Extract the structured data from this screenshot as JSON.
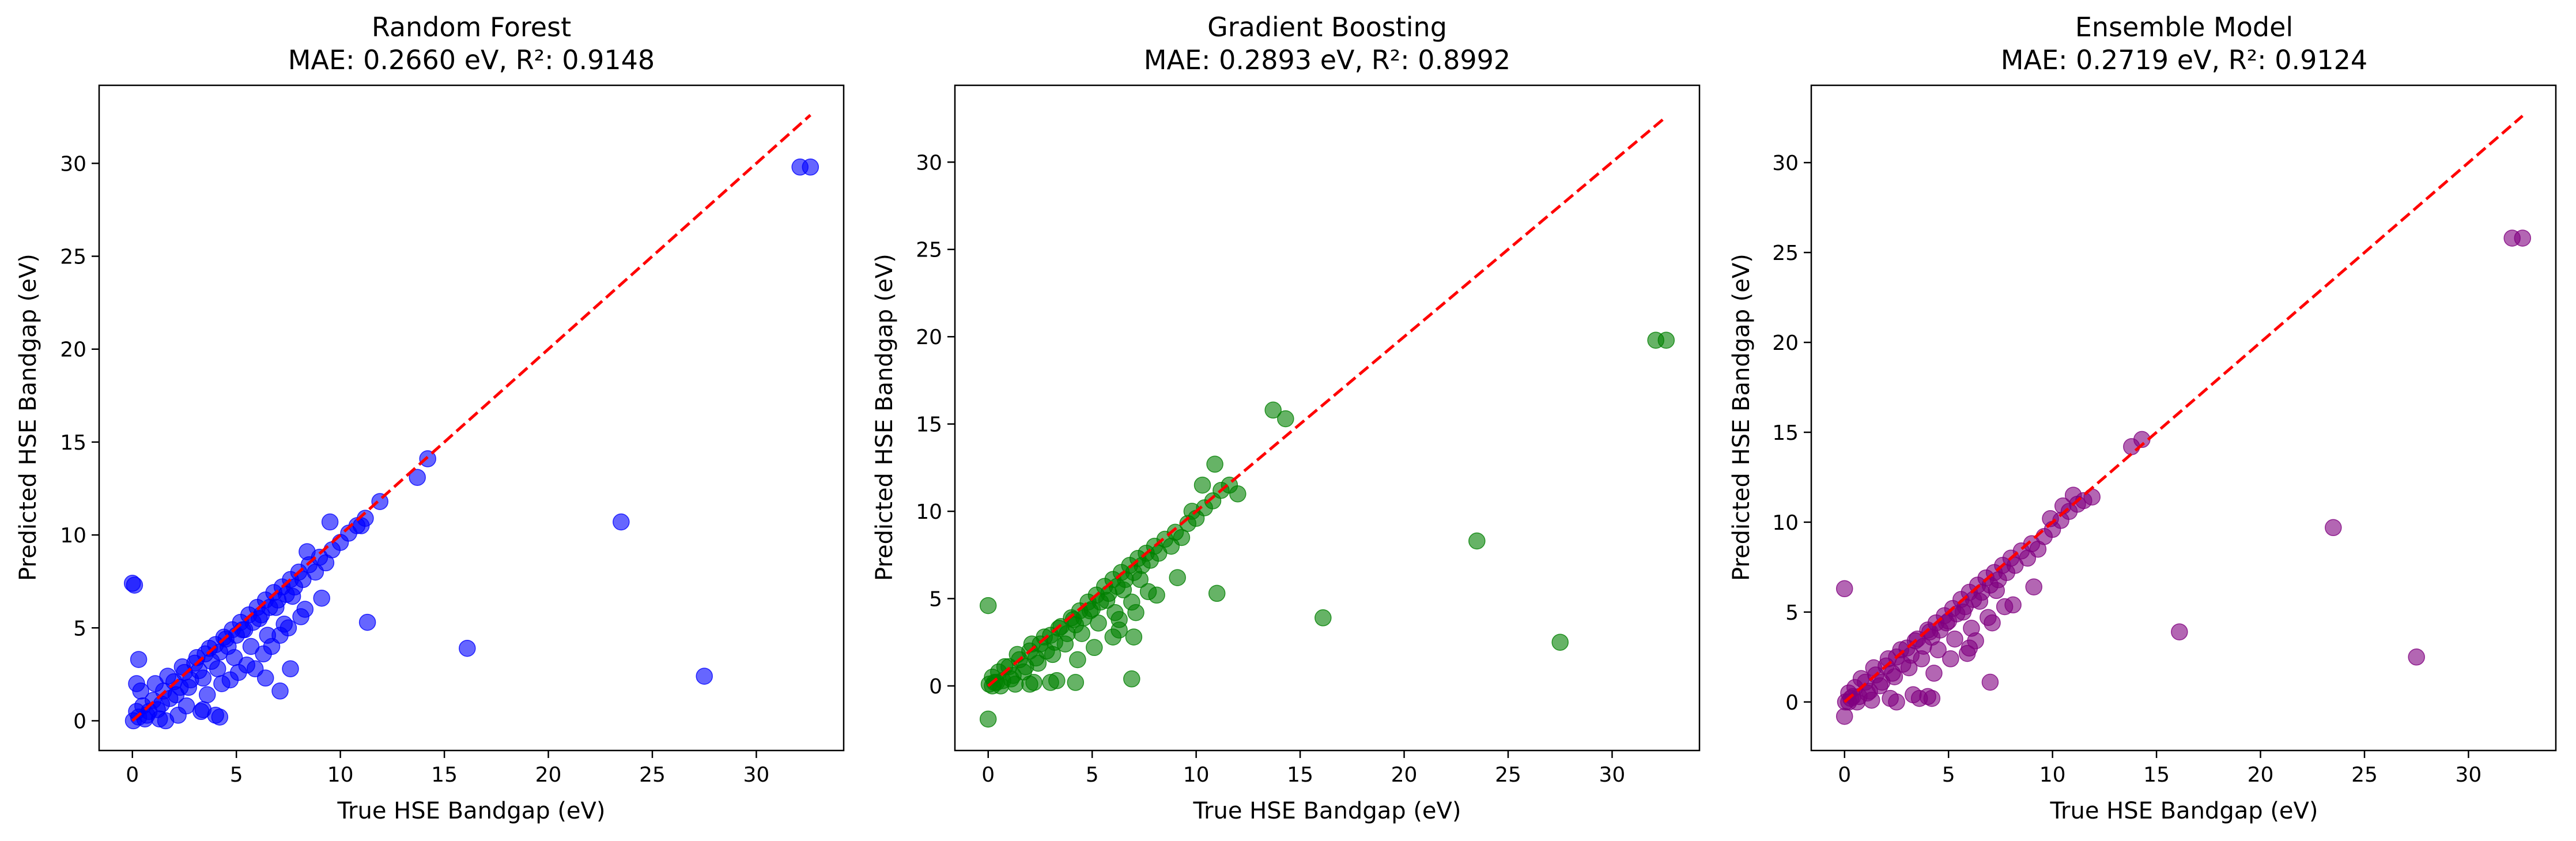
{
  "chart_data": [
    {
      "type": "scatter",
      "title": "Random Forest",
      "subtitle": "MAE: 0.2660 eV, R²: 0.9148",
      "xlabel": "True HSE Bandgap (eV)",
      "ylabel": "Predicted HSE Bandgap (eV)",
      "xlim": [
        -1.6,
        34.2
      ],
      "ylim": [
        -1.6,
        34.2
      ],
      "xticks": [
        0,
        5,
        10,
        15,
        20,
        25,
        30
      ],
      "yticks": [
        0,
        5,
        10,
        15,
        20,
        25,
        30
      ],
      "grid": false,
      "point_color": "#0000ff",
      "reference_line": {
        "from": [
          0,
          0
        ],
        "to": [
          32.6,
          32.6
        ],
        "color": "#ff0000",
        "style": "dashed"
      },
      "series": [
        {
          "x": [
            0,
            0.1,
            0.05,
            0.2,
            0.3,
            0.5,
            0.7,
            1.0,
            1.2,
            1.5,
            1.8,
            2.0,
            2.3,
            2.5,
            2.8,
            3.0,
            3.2,
            3.5,
            3.8,
            4.0,
            4.2,
            4.4,
            4.6,
            4.8,
            5.0,
            5.2,
            5.4,
            5.6,
            5.8,
            6.0,
            6.2,
            6.4,
            6.6,
            6.8,
            7.0,
            7.2,
            7.4,
            7.6,
            7.8,
            8.0,
            8.2,
            8.5,
            8.8,
            9.0,
            9.3,
            9.6,
            10.0,
            10.4,
            10.8,
            11.2,
            0.4,
            0.8,
            1.1,
            1.4,
            1.7,
            2.1,
            2.4,
            2.7,
            3.1,
            3.4,
            3.7,
            4.1,
            4.5,
            4.9,
            5.3,
            5.7,
            6.1,
            6.5,
            6.9,
            7.3,
            7.7,
            0.2,
            0.6,
            1.3,
            2.2,
            3.3,
            4.3,
            5.1,
            6.3,
            7.1,
            8.1,
            9.1,
            0.3,
            1.6,
            2.6,
            3.6,
            4.7,
            5.5,
            6.7,
            7.5,
            8.3,
            3.4,
            4.0,
            4.2,
            5.9,
            6.4,
            7.1,
            7.6,
            8.4,
            9.5,
            11.0,
            11.3,
            11.9,
            13.7,
            14.2,
            16.1,
            23.5,
            27.5,
            32.1,
            32.6
          ],
          "y": [
            7.4,
            7.3,
            0.0,
            0.5,
            0.2,
            0.8,
            0.3,
            1.1,
            0.6,
            1.6,
            1.2,
            2.1,
            1.8,
            2.6,
            2.2,
            3.1,
            2.7,
            3.6,
            3.2,
            4.1,
            3.7,
            4.5,
            4.0,
            4.9,
            4.6,
            5.3,
            4.9,
            5.7,
            5.3,
            6.1,
            5.7,
            6.5,
            6.1,
            6.9,
            6.5,
            7.2,
            6.8,
            7.6,
            7.2,
            8.0,
            7.6,
            8.4,
            8.0,
            8.8,
            8.5,
            9.2,
            9.6,
            10.1,
            10.5,
            10.9,
            1.6,
            0.5,
            2.0,
            0.9,
            2.4,
            1.4,
            2.9,
            1.8,
            3.4,
            2.3,
            3.9,
            2.8,
            4.4,
            3.4,
            4.9,
            4.0,
            5.5,
            4.6,
            6.1,
            5.2,
            6.7,
            2.0,
            0.1,
            0.1,
            0.3,
            0.5,
            2.0,
            2.6,
            3.6,
            4.6,
            5.6,
            6.6,
            3.3,
            0.0,
            0.8,
            1.4,
            2.2,
            3.0,
            4.0,
            5.0,
            6.0,
            0.6,
            0.3,
            0.2,
            2.8,
            2.3,
            1.6,
            2.8,
            9.1,
            10.7,
            10.5,
            5.3,
            11.8,
            13.1,
            14.1,
            3.9,
            10.7,
            2.4,
            29.8,
            29.8
          ]
        }
      ]
    },
    {
      "type": "scatter",
      "title": "Gradient Boosting",
      "subtitle": "MAE: 0.2893 eV, R²: 0.8992",
      "xlabel": "True HSE Bandgap (eV)",
      "ylabel": "Predicted HSE Bandgap (eV)",
      "xlim": [
        -1.6,
        34.2
      ],
      "ylim": [
        -3.7,
        34.4
      ],
      "xticks": [
        0,
        5,
        10,
        15,
        20,
        25,
        30
      ],
      "yticks": [
        0,
        5,
        10,
        15,
        20,
        25,
        30
      ],
      "grid": false,
      "point_color": "#008000",
      "reference_line": {
        "from": [
          0,
          0
        ],
        "to": [
          32.6,
          32.6
        ],
        "color": "#ff0000",
        "style": "dashed"
      },
      "series": [
        {
          "x": [
            0,
            0,
            0.05,
            0.2,
            0.3,
            0.5,
            0.7,
            1.0,
            1.2,
            1.5,
            1.8,
            2.0,
            2.3,
            2.5,
            2.8,
            3.0,
            3.2,
            3.5,
            3.8,
            4.0,
            4.2,
            4.4,
            4.6,
            4.8,
            5.0,
            5.2,
            5.4,
            5.6,
            5.8,
            6.0,
            6.2,
            6.4,
            6.6,
            6.8,
            7.0,
            7.2,
            7.4,
            7.6,
            7.8,
            8.0,
            8.2,
            8.5,
            8.8,
            9.0,
            9.3,
            9.6,
            10.0,
            10.4,
            10.8,
            11.2,
            0.4,
            0.8,
            1.1,
            1.4,
            1.7,
            2.1,
            2.4,
            2.7,
            3.1,
            3.4,
            3.7,
            4.1,
            4.5,
            4.9,
            5.3,
            5.7,
            6.1,
            6.5,
            6.9,
            7.3,
            7.7,
            0.2,
            0.6,
            1.3,
            2.2,
            3.3,
            4.3,
            5.1,
            6.3,
            7.1,
            8.1,
            9.1,
            2.0,
            3.0,
            4.2,
            6.0,
            6.3,
            6.9,
            7.0,
            9.8,
            10.3,
            10.9,
            11.0,
            11.6,
            12.0,
            13.7,
            14.3,
            16.1,
            23.5,
            27.5,
            32.1,
            32.6
          ],
          "y": [
            4.6,
            -1.9,
            0.1,
            0.5,
            0.2,
            0.8,
            0.3,
            1.1,
            0.6,
            1.5,
            1.1,
            2.0,
            1.6,
            2.4,
            2.0,
            2.9,
            2.5,
            3.4,
            3.0,
            3.9,
            3.5,
            4.3,
            3.9,
            4.8,
            4.4,
            5.2,
            4.8,
            5.7,
            5.3,
            6.1,
            5.7,
            6.5,
            6.1,
            6.9,
            6.5,
            7.3,
            6.9,
            7.6,
            7.2,
            8.0,
            7.6,
            8.4,
            8.0,
            8.8,
            8.5,
            9.3,
            9.6,
            10.2,
            10.6,
            11.2,
            0.2,
            1.1,
            0.4,
            1.8,
            0.8,
            2.4,
            1.3,
            2.8,
            1.8,
            3.3,
            2.4,
            3.8,
            3.0,
            4.3,
            3.6,
            4.9,
            4.2,
            5.5,
            4.8,
            6.1,
            5.4,
            0.0,
            0.0,
            0.1,
            0.2,
            0.3,
            1.5,
            2.2,
            3.2,
            4.2,
            5.2,
            6.2,
            0.1,
            0.2,
            0.2,
            2.8,
            3.8,
            0.4,
            2.8,
            10.0,
            11.5,
            12.7,
            5.3,
            11.5,
            11.0,
            15.8,
            15.3,
            3.9,
            8.3,
            2.5,
            19.8,
            19.8
          ]
        }
      ]
    },
    {
      "type": "scatter",
      "title": "Ensemble Model",
      "subtitle": "MAE: 0.2719 eV, R²: 0.9124",
      "xlabel": "True HSE Bandgap (eV)",
      "ylabel": "Predicted HSE Bandgap (eV)",
      "xlim": [
        -1.6,
        34.2
      ],
      "ylim": [
        -2.7,
        34.3
      ],
      "xticks": [
        0,
        5,
        10,
        15,
        20,
        25,
        30
      ],
      "yticks": [
        0,
        5,
        10,
        15,
        20,
        25,
        30
      ],
      "grid": false,
      "point_color": "#800080",
      "reference_line": {
        "from": [
          0,
          0
        ],
        "to": [
          32.6,
          32.6
        ],
        "color": "#ff0000",
        "style": "dashed"
      },
      "series": [
        {
          "x": [
            0,
            0,
            0.05,
            0.2,
            0.3,
            0.5,
            0.7,
            1.0,
            1.2,
            1.5,
            1.8,
            2.0,
            2.3,
            2.5,
            2.8,
            3.0,
            3.2,
            3.5,
            3.8,
            4.0,
            4.2,
            4.4,
            4.6,
            4.8,
            5.0,
            5.2,
            5.4,
            5.6,
            5.8,
            6.0,
            6.2,
            6.4,
            6.6,
            6.8,
            7.0,
            7.2,
            7.4,
            7.6,
            7.8,
            8.0,
            8.2,
            8.5,
            8.8,
            9.0,
            9.3,
            9.6,
            10.0,
            10.4,
            10.8,
            11.2,
            0.4,
            0.8,
            1.1,
            1.4,
            1.7,
            2.1,
            2.4,
            2.7,
            3.1,
            3.4,
            3.7,
            4.1,
            4.5,
            4.9,
            5.3,
            5.7,
            6.1,
            6.5,
            6.9,
            7.3,
            7.7,
            0.2,
            0.6,
            1.3,
            2.2,
            3.3,
            4.3,
            5.1,
            6.3,
            7.1,
            8.1,
            9.1,
            2.5,
            3.6,
            4.0,
            4.2,
            5.9,
            6.0,
            7.0,
            9.9,
            10.5,
            11.0,
            11.5,
            11.9,
            13.8,
            14.3,
            16.1,
            23.5,
            27.5,
            32.1,
            32.6
          ],
          "y": [
            6.3,
            -0.8,
            0.0,
            0.5,
            0.2,
            0.8,
            0.3,
            1.1,
            0.6,
            1.5,
            1.1,
            2.0,
            1.6,
            2.5,
            2.1,
            3.0,
            2.6,
            3.5,
            3.1,
            4.0,
            3.6,
            4.4,
            4.0,
            4.8,
            4.5,
            5.2,
            4.9,
            5.7,
            5.3,
            6.1,
            5.7,
            6.5,
            6.1,
            6.9,
            6.5,
            7.2,
            6.8,
            7.6,
            7.2,
            8.0,
            7.6,
            8.4,
            8.0,
            8.8,
            8.5,
            9.2,
            9.6,
            10.1,
            10.6,
            11.0,
            0.3,
            1.3,
            0.5,
            1.9,
            0.9,
            2.4,
            1.4,
            2.9,
            1.9,
            3.4,
            2.4,
            3.9,
            2.9,
            4.4,
            3.5,
            5.0,
            4.1,
            5.6,
            4.7,
            6.2,
            5.3,
            0.0,
            0.0,
            0.1,
            0.2,
            0.4,
            1.6,
            2.4,
            3.4,
            4.4,
            5.4,
            6.4,
            0.0,
            0.2,
            0.3,
            0.2,
            2.7,
            3.0,
            1.1,
            10.2,
            10.9,
            11.5,
            11.2,
            11.4,
            14.2,
            14.6,
            3.9,
            9.7,
            2.5,
            25.8,
            25.8
          ]
        }
      ]
    }
  ]
}
